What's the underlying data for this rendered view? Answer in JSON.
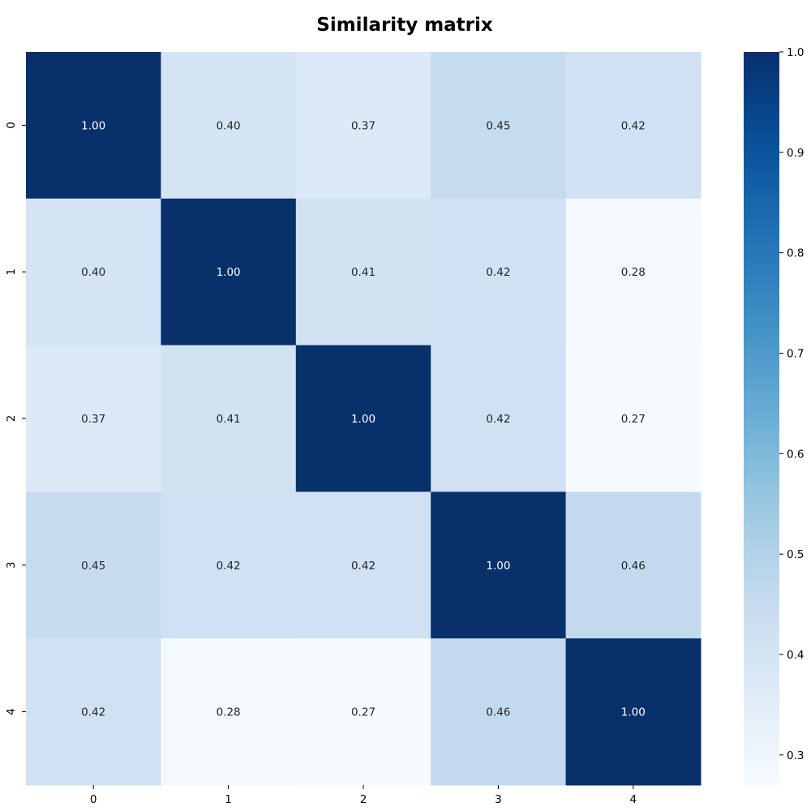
{
  "chart_data": {
    "type": "heatmap",
    "title": "Similarity matrix",
    "x_categories": [
      "0",
      "1",
      "2",
      "3",
      "4"
    ],
    "y_categories": [
      "0",
      "1",
      "2",
      "3",
      "4"
    ],
    "values": [
      [
        1.0,
        0.4,
        0.37,
        0.45,
        0.42
      ],
      [
        0.4,
        1.0,
        0.41,
        0.42,
        0.28
      ],
      [
        0.37,
        0.41,
        1.0,
        0.42,
        0.27
      ],
      [
        0.45,
        0.42,
        0.42,
        1.0,
        0.46
      ],
      [
        0.42,
        0.28,
        0.27,
        0.46,
        1.0
      ]
    ],
    "value_format": "0.00",
    "colormap": "Blues",
    "color_range": [
      0.27,
      1.0
    ],
    "colorbar": {
      "ticks": [
        "0.3",
        "0.4",
        "0.5",
        "0.6",
        "0.7",
        "0.8",
        "0.9",
        "1.0"
      ],
      "tick_values": [
        0.3,
        0.4,
        0.5,
        0.6,
        0.7,
        0.8,
        0.9,
        1.0
      ]
    },
    "colors": {
      "low": "#f7fbff",
      "high": "#08306b",
      "dark_text": "#262626",
      "light_text": "#ffffff"
    }
  }
}
